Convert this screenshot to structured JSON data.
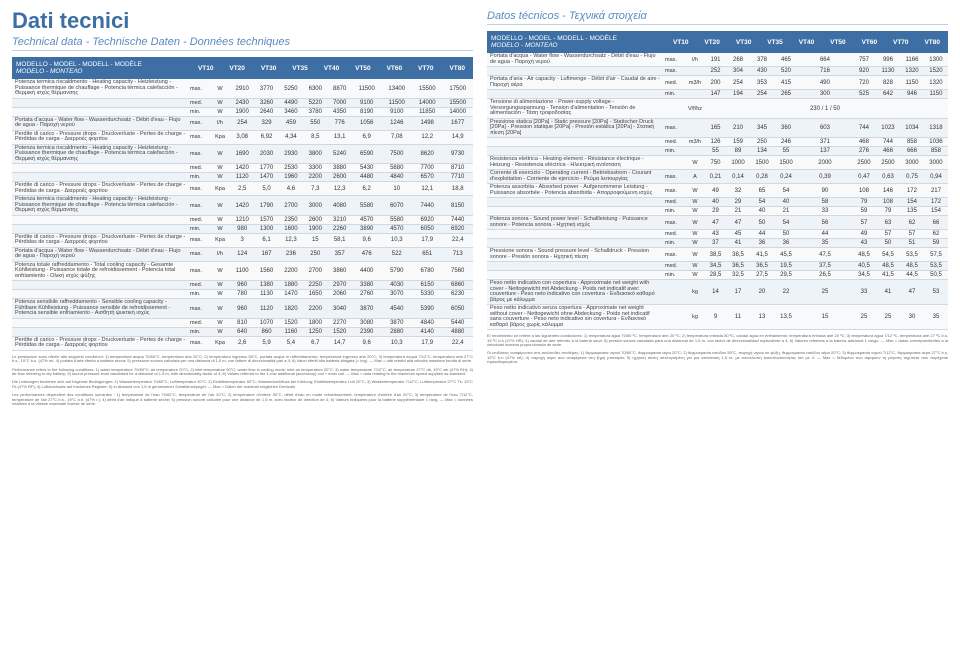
{
  "left": {
    "title": "Dati tecnici",
    "subtitle": "Technical data - Technische Daten - Données techniques",
    "header_label_main": "MODELLO - MODEL - MODELL - MODÈLE",
    "header_label_sub": "MODELO - ΜΟΝΤΕΛΟ",
    "columns": [
      "VT10",
      "VT20",
      "VT30",
      "VT35",
      "VT40",
      "VT50",
      "VT60",
      "VT70",
      "VT80"
    ],
    "rows": [
      {
        "desc": "Potenza termica riscaldmento - Heating capacity - Heizleistung - Puissance thermique de chauffage - Potencia térmica calefacción - Θερμική ισχύς θέρμανσης",
        "level": "max.",
        "unit": "W",
        "vals": [
          "2910",
          "3770",
          "5250",
          "6300",
          "8870",
          "11500",
          "13400",
          "15500",
          "17500"
        ]
      },
      {
        "desc": "",
        "level": "med.",
        "unit": "W",
        "vals": [
          "2430",
          "3260",
          "4490",
          "5220",
          "7000",
          "9100",
          "11500",
          "14000",
          "15500"
        ]
      },
      {
        "desc": "",
        "level": "min.",
        "unit": "W",
        "vals": [
          "1900",
          "2640",
          "3460",
          "3780",
          "4350",
          "8190",
          "9100",
          "11850",
          "14000"
        ]
      },
      {
        "desc": "Portata d'acqua - Water flow - Wasserdurchsatz - Débit d'eau - Flujo de agua - Παροχή νερού",
        "level": "max.",
        "unit": "l/h",
        "vals": [
          "254",
          "329",
          "459",
          "550",
          "776",
          "1056",
          "1246",
          "1498",
          "1677"
        ]
      },
      {
        "desc": "Perdite di carico - Pressure drops - Druckverluste - Pertes de charge - Pérdidas de carga - Διαρροές φορτίου",
        "level": "max.",
        "unit": "Kpa",
        "vals": [
          "3,08",
          "6,92",
          "4,34",
          "8,5",
          "13,1",
          "6,9",
          "7,08",
          "12,2",
          "14,9"
        ]
      },
      {
        "desc": "Potenza termica riscaldmento - Heating capacity - Heizleistung - Puissance thermique de chauffage - Potencia térmica calefacción - Θερμική ισχύς θέρμανσης",
        "level": "max.",
        "unit": "W",
        "vals": [
          "1690",
          "2030",
          "2930",
          "3800",
          "5240",
          "6590",
          "7500",
          "8620",
          "9730"
        ]
      },
      {
        "desc": "",
        "level": "med.",
        "unit": "W",
        "vals": [
          "1420",
          "1770",
          "2530",
          "3300",
          "3880",
          "5430",
          "5880",
          "7700",
          "8710"
        ]
      },
      {
        "desc": "",
        "level": "min.",
        "unit": "W",
        "vals": [
          "1120",
          "1470",
          "1960",
          "2200",
          "2600",
          "4480",
          "4840",
          "6570",
          "7710"
        ]
      },
      {
        "desc": "Perdite di carico - Pressure drops - Druckverluste - Pertes de charge - Pérdidas de carga - Διαρροές φορτίου",
        "level": "max.",
        "unit": "Kpa",
        "vals": [
          "2,5",
          "5,0",
          "4,6",
          "7,3",
          "12,3",
          "6,2",
          "10",
          "12,1",
          "18,8"
        ]
      },
      {
        "desc": "Potenza termica riscaldmento - Heating capacity - Heizleistung - Puissance thermique de chauffage - Potencia térmica calefacción - Θερμική ισχύς θέρμανσης",
        "level": "max.",
        "unit": "W",
        "vals": [
          "1420",
          "1790",
          "2700",
          "3000",
          "4080",
          "5580",
          "6070",
          "7440",
          "8150"
        ]
      },
      {
        "desc": "",
        "level": "med.",
        "unit": "W",
        "vals": [
          "1210",
          "1570",
          "2350",
          "2600",
          "3210",
          "4570",
          "5580",
          "6920",
          "7440"
        ]
      },
      {
        "desc": "",
        "level": "min.",
        "unit": "W",
        "vals": [
          "980",
          "1300",
          "1600",
          "1900",
          "2260",
          "3890",
          "4570",
          "6050",
          "6920"
        ]
      },
      {
        "desc": "Perdite di carico - Pressure drops - Druckverluste - Pertes de charge - Pérdidas de carga - Διαρροές φορτίου",
        "level": "max.",
        "unit": "Kpa",
        "vals": [
          "3",
          "6,1",
          "12,3",
          "15",
          "58,1",
          "9,6",
          "10,3",
          "17,9",
          "22,4"
        ]
      },
      {
        "desc": "Portata d'acqua - Water flow - Wasserdurchsatz - Débit d'eau - Flujo de agua - Παροχή νερού",
        "level": "max.",
        "unit": "l/h",
        "vals": [
          "124",
          "167",
          "236",
          "250",
          "357",
          "476",
          "522",
          "651",
          "713"
        ]
      },
      {
        "desc": "Potenza totale raffreddamento - Total cooling capacity - Gesamte Kühlleistung - Puissance totale de refroidissement - Potencia total enfriamiento - Ολική ισχύς ψύξης",
        "level": "max.",
        "unit": "W",
        "vals": [
          "1100",
          "1560",
          "2200",
          "2700",
          "3860",
          "4400",
          "5790",
          "6780",
          "7560"
        ]
      },
      {
        "desc": "",
        "level": "med.",
        "unit": "W",
        "vals": [
          "960",
          "1380",
          "1880",
          "2250",
          "2970",
          "3380",
          "4030",
          "6150",
          "6860"
        ]
      },
      {
        "desc": "",
        "level": "min.",
        "unit": "W",
        "vals": [
          "780",
          "1130",
          "1470",
          "1650",
          "2060",
          "2760",
          "3070",
          "5330",
          "6230"
        ]
      },
      {
        "desc": "Potenza sensibile raffreddamento - Sensible cooling capacity - Fühlbare Kühlleistung - Puissance sensible de refroidissement - Potencia sensible enfriamiento - Αισθητή ψυκτική ισχύς",
        "level": "max.",
        "unit": "W",
        "vals": [
          "960",
          "1120",
          "1820",
          "2200",
          "3040",
          "3870",
          "4540",
          "5390",
          "6050"
        ]
      },
      {
        "desc": "",
        "level": "med.",
        "unit": "W",
        "vals": [
          "810",
          "1070",
          "1520",
          "1800",
          "2270",
          "3080",
          "3870",
          "4840",
          "5440"
        ]
      },
      {
        "desc": "",
        "level": "min.",
        "unit": "W",
        "vals": [
          "640",
          "860",
          "1160",
          "1250",
          "1520",
          "2390",
          "2880",
          "4140",
          "4880"
        ]
      },
      {
        "desc": "Perdite di carico - Pressure drops - Druckverluste - Pertes de charge - Pérdidas de carga - Διαρροές φορτίου",
        "level": "max.",
        "unit": "Kpa",
        "vals": [
          "2,6",
          "5,9",
          "5,4",
          "6,7",
          "14,7",
          "9,6",
          "10,3",
          "17,9",
          "22,4"
        ]
      }
    ],
    "footnotes": [
      "Le prestazioni sono riferite alle seguenti condizioni: 1) temperatura acqua 70/60°C, temperatura aria 20°C; 2) temperatura ingresso 50°C, portata acqua in raffreddamento; temperatura ingresso aria 20°C; 3) temperatura acqua 7/12°C, temperatura aria 27°C b.s., 19°C b.u. (47% rel. 4) portata d'aria riferita a batteria secca; 5) pressione sonora calcolata per una distanza di 1,5 m, con fattore di direzzionalità pari a 4; 6) Valori riferiti alla batteria allagata (= ing). — Max = dati relativi alla velocità massima fornita di serie.",
      "Performance refers to the following conditions: 1) water temperature 70/60°C; air temperature 20°C; 2) inlet temperature 50°C; water flow in cooling mode; inlet air temperature 20°C; 3) water temperature 7/12°C, air temperature 27°C db, 19°C wb (47% RH); 4) air flow referring to dry battery; 5) sound pressure level calculated for a distance of 1.5 m, with directionality factor of 4; 6) Values referred to the 1-row additional (accessory) coil + main coil. — Max = data relating to the maximum speed supplied as standard.",
      "Die Leistungen beziehen sich auf folgende Bedingungen: 1) Wassertemperatur 70/60°C; Lufttemperatur 20°C; 2) Eintrittstemperatur 50°C; Wasserdurchfluss bei Kühlung; Eintrittstemperatur Luft 20°C; 3) Wassertemperatur 7/12°C, Lufttemperatur 27°C Tk, 19°C Fk (47% RF); 4) Luftdurchsatz auf trockenes Register; 5) in Abstand von 1,5 m gemessener Schalldruckpegel. — Max = Daten der maximal möglichen Drehzahl.",
      "Les performances dépendent des conditions suivantes : 1) température de l'eau 70/60°C, température de l'air 20°C; 2) température d'entrée 50°C, débit d'eau en mode refroidissement; température d'entrée d'air 20°C; 3) température de l'eau 7/12°C, température de l'air 27°C b.s., 19°C b.h. (47% r.); 4) débit d'air indiqué à batterie sèche; 5) pression sonore calculée pour une distance de 1,5 m, avec facteur de direction de 4; 6) Valeurs indiquées pour la batterie supplémentaire 1 rang. — Max = données relatives à la vitesse maximale fournie de série."
    ]
  },
  "right": {
    "title": "",
    "subtitle": "Datos técnicos - Τεχνικά στοιχεία",
    "header_label_main": "MODELLO - MODEL - MODELL - MODÈLE",
    "header_label_sub": "MODELO - ΜΟΝΤΕΛΟ",
    "columns": [
      "VT10",
      "VT20",
      "VT30",
      "VT35",
      "VT40",
      "VT50",
      "VT60",
      "VT70",
      "VT80"
    ],
    "rows": [
      {
        "desc": "Portata d'acqua - Water flow - Wasserdurchsatz - Débit d'eau - Flujo de agua - Παροχή νερού",
        "level": "max.",
        "unit": "l/h",
        "vals": [
          "191",
          "268",
          "378",
          "465",
          "664",
          "757",
          "996",
          "1166",
          "1300"
        ]
      },
      {
        "desc": "",
        "level": "max.",
        "unit": "",
        "vals": [
          "252",
          "304",
          "430",
          "520",
          "716",
          "920",
          "1130",
          "1320",
          "1520"
        ]
      },
      {
        "desc": "Portata d'aria - Air capacity - Luftmenge - Débit d'air - Caudal de aire - Παροχή αέρα",
        "level": "med.",
        "unit": "m3/h",
        "vals": [
          "200",
          "254",
          "353",
          "415",
          "490",
          "720",
          "828",
          "1150",
          "1320"
        ]
      },
      {
        "desc": "",
        "level": "min.",
        "unit": "",
        "vals": [
          "147",
          "194",
          "254",
          "265",
          "300",
          "525",
          "642",
          "946",
          "1150"
        ]
      },
      {
        "desc": "Tensione di alimentazione - Power-supply voltage - Versorgungsspannung - Tension d'alimentation - Tensión de alimentación - Τάση τροφοδοσίας",
        "level": "",
        "unit": "V/f/hz",
        "vals": [
          "",
          "",
          "",
          "",
          "230 / 1 / 50",
          "",
          "",
          "",
          ""
        ]
      },
      {
        "desc": "Pressione statica [20Pa] - Static pressure [20Pa] - Statischer Druck [20Pa] - Pression statique [20Pa] - Presión estática [20Pa] - Στατική πίεση [20Pa]",
        "level": "max.",
        "unit": "",
        "vals": [
          "165",
          "210",
          "345",
          "360",
          "603",
          "744",
          "1023",
          "1034",
          "1318"
        ]
      },
      {
        "desc": "",
        "level": "med.",
        "unit": "m3/h",
        "vals": [
          "126",
          "159",
          "250",
          "246",
          "371",
          "468",
          "744",
          "858",
          "1036"
        ]
      },
      {
        "desc": "",
        "level": "min.",
        "unit": "",
        "vals": [
          "55",
          "89",
          "134",
          "55",
          "137",
          "276",
          "466",
          "666",
          "858"
        ]
      },
      {
        "desc": "Resistenza elettrica - Heating element - Résistance électrique - Heizung - Resistencia eléctrica - Ηλεκτρική αντίσταση",
        "level": "",
        "unit": "W",
        "vals": [
          "750",
          "1000",
          "1500",
          "1500",
          "2000",
          "2500",
          "2500",
          "3000",
          "3000"
        ]
      },
      {
        "desc": "Corrente di esercizio - Operating current - Betriebsstrom - Courant d'exploitation - Corriente de ejercicio - Ρεύμα λειτουργίας",
        "level": "max.",
        "unit": "A",
        "vals": [
          "0,21",
          "0,14",
          "0,28",
          "0,24",
          "0,39",
          "0,47",
          "0,63",
          "0,75",
          "0,94"
        ]
      },
      {
        "desc": "Potenza assorbita - Absorbed power - Aufgenommene Leistung - Puissance absorbée - Potencia absorbida - Απορροφούμενη ισχύς",
        "level": "max.",
        "unit": "W",
        "vals": [
          "49",
          "32",
          "65",
          "54",
          "90",
          "108",
          "146",
          "172",
          "217"
        ]
      },
      {
        "desc": "",
        "level": "med.",
        "unit": "W",
        "vals": [
          "40",
          "29",
          "54",
          "40",
          "58",
          "79",
          "108",
          "154",
          "172"
        ]
      },
      {
        "desc": "",
        "level": "min.",
        "unit": "W",
        "vals": [
          "29",
          "21",
          "40",
          "21",
          "33",
          "59",
          "79",
          "135",
          "154"
        ]
      },
      {
        "desc": "Potenza sonora - Sound power level - Schallleistung - Puissance sonore - Potencia sonora - Ηχητική ισχύς",
        "level": "max.",
        "unit": "W",
        "vals": [
          "47",
          "47",
          "50",
          "54",
          "56",
          "57",
          "63",
          "62",
          "66"
        ]
      },
      {
        "desc": "",
        "level": "med.",
        "unit": "W",
        "vals": [
          "43",
          "45",
          "44",
          "50",
          "44",
          "49",
          "57",
          "57",
          "62"
        ]
      },
      {
        "desc": "",
        "level": "min.",
        "unit": "W",
        "vals": [
          "37",
          "41",
          "36",
          "36",
          "35",
          "43",
          "50",
          "51",
          "59"
        ]
      },
      {
        "desc": "Pressione sonora - Sound pressure level - Schalldruck - Pression sonore - Presión sonora - Ηχητική πίεση",
        "level": "max.",
        "unit": "W",
        "vals": [
          "38,5",
          "38,5",
          "41,5",
          "45,5",
          "47,5",
          "48,5",
          "54,5",
          "53,5",
          "57,5"
        ]
      },
      {
        "desc": "",
        "level": "med.",
        "unit": "W",
        "vals": [
          "34,5",
          "36,5",
          "36,5",
          "19,5",
          "37,5",
          "40,5",
          "48,5",
          "48,5",
          "53,5"
        ]
      },
      {
        "desc": "",
        "level": "min.",
        "unit": "W",
        "vals": [
          "28,5",
          "32,5",
          "27,5",
          "29,5",
          "26,5",
          "34,5",
          "41,5",
          "44,5",
          "50,5"
        ]
      },
      {
        "desc": "Peso netto indicativo con copertura - Approximate net weight with cover - Nettogewicht mit Abdeckung - Poids net indicatif avec couverture - Peso neto indicativo con covertura - Ενδεικτικό καθαρό βάρος με κάλυμμα",
        "level": "",
        "unit": "kg",
        "vals": [
          "14",
          "17",
          "20",
          "22",
          "25",
          "33",
          "41",
          "47",
          "53"
        ]
      },
      {
        "desc": "Peso netto indicativo senza copertura - Approximate net weight without cover - Nettogewicht ohne Abdeckung - Poids net indicatif sans couverture - Peso neto indicativo sin covertura - Ενδεικτικό καθαρό βάρος χωρίς κάλυμμα",
        "level": "",
        "unit": "kg",
        "vals": [
          "9",
          "11",
          "13",
          "13,5",
          "15",
          "25",
          "25",
          "30",
          "35"
        ]
      }
    ],
    "footnotes": [
      "El rendimiento se refiere a las siguientes condiciones: 1) temperatura agua 70/60 ºC, temperatura aire 20 ºC; 2) temperatura entrada 50 ºC, caudal agua en enfriamiento; temperatura entrada aire 20 ºC; 3) temperatura agua 7/12 ºC, temperatura aire 27 ºC b.s, 19 ºC b.h (47% HR); 4) caudal de aire referido a la batería seca; 5) presión sonora calculada para una distancia de 1,5 m, con factor de direccionalidad equivalente a 4; 6) Valores referidos a la batería adicional 1 rango. — Max = datos correspondientes a la velocidad máxima proporcionada de serie.",
      "Οι επιδόσεις αναφέρονται στις ακόλουθες συνθήκες: 1) θερμοκρασία νερού 70/60°C, θερμοκρασία αέρα 20°C; 2) θερμοκρασία εισόδου 50°C, παροχή νερού σε ψύξη; θερμοκρασία εισόδου αέρα 20°C; 3) θερμοκρασία νερού 7/12°C, θερμοκρασία αέρα 27°C b.s, 19°C b.u (47% rel); 4) παροχή αέρα που αναφέρεται στη ξηρή μπαταρία; 5) ηχητική πίεση υπολογισμένη για μια απόσταση 1,5 m, με συντελεστή κατευθυντικότητας ίσο με 4. — Max = δεδομένα που αφορούν τη μέγιστη ταχύτατα που παρέχεται προκαθορισμένα."
    ]
  },
  "colors": {
    "brand_blue": "#3d6fa5",
    "light_blue": "#5a8bc0",
    "row_odd": "#f7f9fb",
    "row_even": "#eef3f8"
  }
}
